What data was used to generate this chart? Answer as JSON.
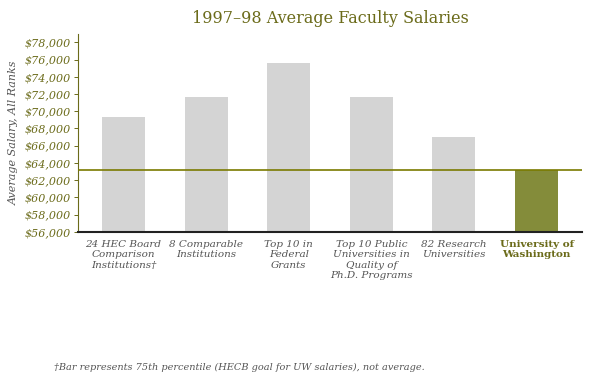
{
  "title": "1997–98 Average Faculty Salaries",
  "ylabel": "Average Salary, All Ranks",
  "categories": [
    "24 HEC Board\nComparison\nInstitutions†",
    "8 Comparable\nInstitutions",
    "Top 10 in\nFederal\nGrants",
    "Top 10 Public\nUniversities in\nQuality of\nPh.D. Programs",
    "82 Research\nUniversities",
    "University of\nWashington"
  ],
  "values": [
    69300,
    71700,
    75600,
    71700,
    67000,
    63200
  ],
  "bar_colors": [
    "#d4d4d4",
    "#d4d4d4",
    "#d4d4d4",
    "#d4d4d4",
    "#d4d4d4",
    "#848c3a"
  ],
  "hline_y": 63200,
  "hline_color": "#7a7a00",
  "ylim": [
    56000,
    79000
  ],
  "yticks": [
    56000,
    58000,
    60000,
    62000,
    64000,
    66000,
    68000,
    70000,
    72000,
    74000,
    76000,
    78000
  ],
  "footnote": "†Bar represents 75th percentile (HECB goal for UW salaries), not average.",
  "bg_color": "#ffffff",
  "title_color": "#6b6b1a",
  "ytick_color": "#6b6b1a",
  "ylabel_color": "#555555",
  "xlabel_color": "#555555",
  "last_xlabel_color": "#6b6b1a",
  "spine_bottom_color": "#222222",
  "spine_left_color": "#6b6b1a",
  "title_fontsize": 11.5,
  "ylabel_fontsize": 8,
  "xlabel_fontsize": 7.5,
  "ytick_fontsize": 8,
  "footnote_fontsize": 7
}
